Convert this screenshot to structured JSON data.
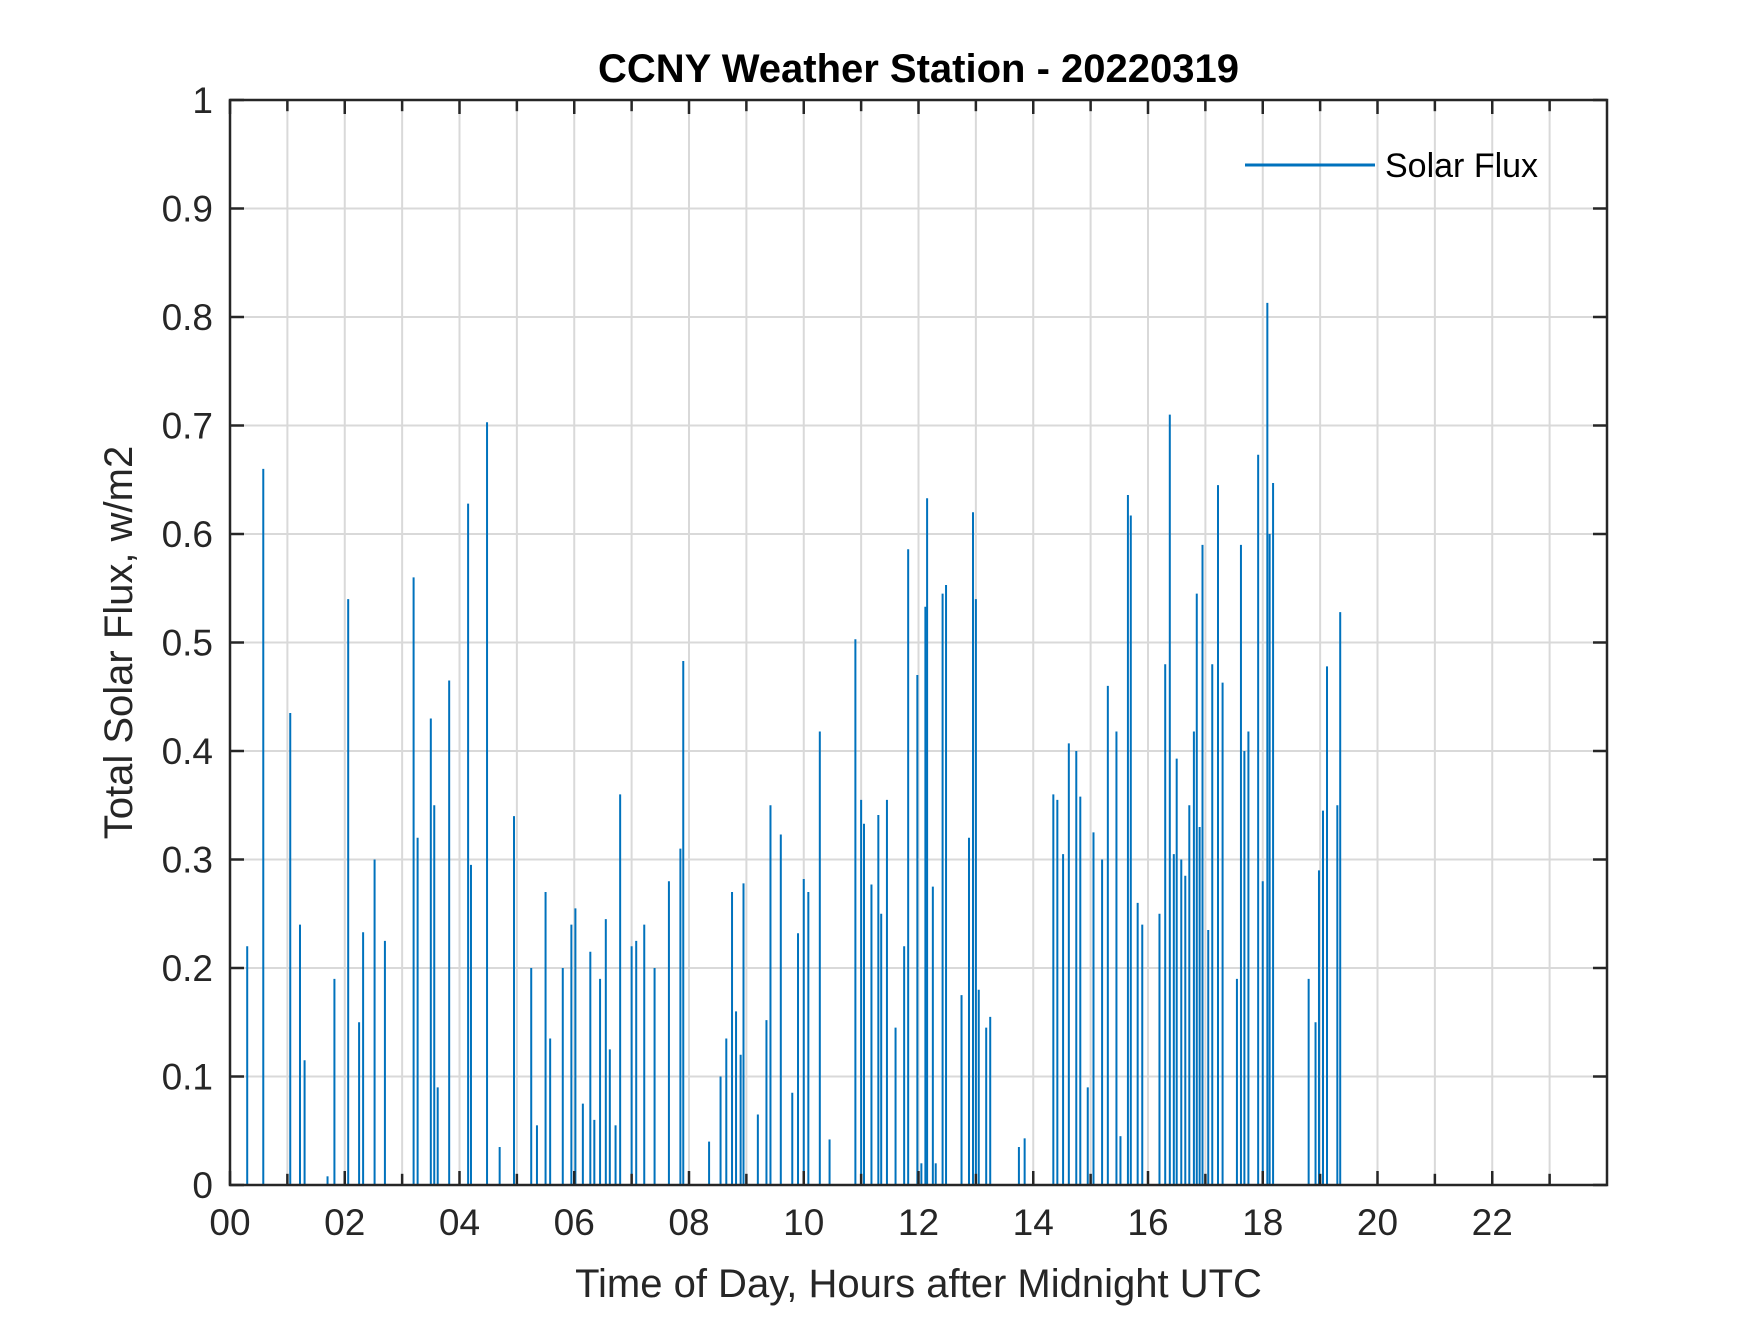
{
  "chart_data": {
    "type": "line",
    "title": "CCNY Weather Station - 20220319",
    "xlabel": "Time of Day, Hours after Midnight UTC",
    "ylabel": "Total Solar Flux, w/m2",
    "xlim": [
      0,
      24
    ],
    "ylim": [
      0,
      1
    ],
    "grid": true,
    "legend_position": "top-right",
    "x_ticks": [
      0,
      2,
      4,
      6,
      8,
      10,
      12,
      14,
      16,
      18,
      20,
      22
    ],
    "x_tick_labels": [
      "00",
      "02",
      "04",
      "06",
      "08",
      "10",
      "12",
      "14",
      "16",
      "18",
      "20",
      "22"
    ],
    "y_ticks": [
      0,
      0.1,
      0.2,
      0.3,
      0.4,
      0.5,
      0.6,
      0.7,
      0.8,
      0.9,
      1
    ],
    "y_tick_labels": [
      "0",
      "0.1",
      "0.2",
      "0.3",
      "0.4",
      "0.5",
      "0.6",
      "0.7",
      "0.8",
      "0.9",
      "1"
    ],
    "series": [
      {
        "name": "Solar Flux",
        "color": "#0072BD",
        "spikes": [
          [
            0.3,
            0.22
          ],
          [
            0.58,
            0.66
          ],
          [
            1.05,
            0.435
          ],
          [
            1.22,
            0.24
          ],
          [
            1.3,
            0.115
          ],
          [
            1.7,
            0.008
          ],
          [
            1.82,
            0.19
          ],
          [
            2.06,
            0.54
          ],
          [
            2.25,
            0.15
          ],
          [
            2.32,
            0.233
          ],
          [
            2.52,
            0.3
          ],
          [
            2.7,
            0.225
          ],
          [
            3.2,
            0.56
          ],
          [
            3.27,
            0.32
          ],
          [
            3.5,
            0.43
          ],
          [
            3.56,
            0.35
          ],
          [
            3.62,
            0.09
          ],
          [
            3.82,
            0.465
          ],
          [
            4.15,
            0.628
          ],
          [
            4.2,
            0.295
          ],
          [
            4.48,
            0.703
          ],
          [
            4.7,
            0.035
          ],
          [
            4.95,
            0.34
          ],
          [
            5.25,
            0.2
          ],
          [
            5.35,
            0.055
          ],
          [
            5.5,
            0.27
          ],
          [
            5.58,
            0.135
          ],
          [
            5.8,
            0.2
          ],
          [
            5.95,
            0.24
          ],
          [
            6.02,
            0.255
          ],
          [
            6.15,
            0.075
          ],
          [
            6.28,
            0.215
          ],
          [
            6.35,
            0.06
          ],
          [
            6.45,
            0.19
          ],
          [
            6.55,
            0.245
          ],
          [
            6.62,
            0.125
          ],
          [
            6.72,
            0.055
          ],
          [
            6.8,
            0.36
          ],
          [
            7.0,
            0.22
          ],
          [
            7.08,
            0.225
          ],
          [
            7.22,
            0.24
          ],
          [
            7.4,
            0.2
          ],
          [
            7.65,
            0.28
          ],
          [
            7.85,
            0.31
          ],
          [
            7.9,
            0.483
          ],
          [
            8.35,
            0.04
          ],
          [
            8.55,
            0.1
          ],
          [
            8.65,
            0.135
          ],
          [
            8.75,
            0.27
          ],
          [
            8.82,
            0.16
          ],
          [
            8.9,
            0.12
          ],
          [
            8.95,
            0.278
          ],
          [
            9.2,
            0.065
          ],
          [
            9.35,
            0.152
          ],
          [
            9.42,
            0.35
          ],
          [
            9.6,
            0.323
          ],
          [
            9.8,
            0.085
          ],
          [
            9.9,
            0.232
          ],
          [
            10.0,
            0.282
          ],
          [
            10.08,
            0.27
          ],
          [
            10.28,
            0.418
          ],
          [
            10.45,
            0.042
          ],
          [
            10.9,
            0.503
          ],
          [
            11.0,
            0.355
          ],
          [
            11.05,
            0.333
          ],
          [
            11.18,
            0.277
          ],
          [
            11.3,
            0.341
          ],
          [
            11.35,
            0.25
          ],
          [
            11.45,
            0.355
          ],
          [
            11.6,
            0.145
          ],
          [
            11.75,
            0.22
          ],
          [
            11.82,
            0.586
          ],
          [
            11.98,
            0.47
          ],
          [
            12.05,
            0.02
          ],
          [
            12.12,
            0.533
          ],
          [
            12.15,
            0.633
          ],
          [
            12.25,
            0.275
          ],
          [
            12.3,
            0.02
          ],
          [
            12.42,
            0.545
          ],
          [
            12.48,
            0.553
          ],
          [
            12.75,
            0.175
          ],
          [
            12.88,
            0.32
          ],
          [
            12.95,
            0.62
          ],
          [
            13.0,
            0.54
          ],
          [
            13.05,
            0.18
          ],
          [
            13.18,
            0.145
          ],
          [
            13.25,
            0.155
          ],
          [
            13.75,
            0.035
          ],
          [
            13.85,
            0.043
          ],
          [
            14.35,
            0.36
          ],
          [
            14.42,
            0.355
          ],
          [
            14.52,
            0.305
          ],
          [
            14.62,
            0.407
          ],
          [
            14.75,
            0.4
          ],
          [
            14.82,
            0.358
          ],
          [
            14.95,
            0.09
          ],
          [
            15.05,
            0.325
          ],
          [
            15.2,
            0.3
          ],
          [
            15.3,
            0.46
          ],
          [
            15.45,
            0.418
          ],
          [
            15.52,
            0.045
          ],
          [
            15.65,
            0.636
          ],
          [
            15.7,
            0.617
          ],
          [
            15.82,
            0.26
          ],
          [
            15.9,
            0.24
          ],
          [
            16.2,
            0.25
          ],
          [
            16.3,
            0.48
          ],
          [
            16.38,
            0.71
          ],
          [
            16.45,
            0.305
          ],
          [
            16.5,
            0.393
          ],
          [
            16.58,
            0.3
          ],
          [
            16.65,
            0.285
          ],
          [
            16.72,
            0.35
          ],
          [
            16.8,
            0.418
          ],
          [
            16.85,
            0.545
          ],
          [
            16.9,
            0.33
          ],
          [
            16.95,
            0.59
          ],
          [
            17.05,
            0.235
          ],
          [
            17.12,
            0.48
          ],
          [
            17.22,
            0.645
          ],
          [
            17.3,
            0.463
          ],
          [
            17.55,
            0.19
          ],
          [
            17.62,
            0.59
          ],
          [
            17.68,
            0.4
          ],
          [
            17.75,
            0.418
          ],
          [
            17.92,
            0.673
          ],
          [
            18.0,
            0.28
          ],
          [
            18.08,
            0.813
          ],
          [
            18.12,
            0.6
          ],
          [
            18.18,
            0.647
          ],
          [
            18.8,
            0.19
          ],
          [
            18.92,
            0.15
          ],
          [
            18.98,
            0.29
          ],
          [
            19.05,
            0.345
          ],
          [
            19.12,
            0.478
          ],
          [
            19.3,
            0.35
          ],
          [
            19.35,
            0.528
          ]
        ]
      }
    ]
  }
}
